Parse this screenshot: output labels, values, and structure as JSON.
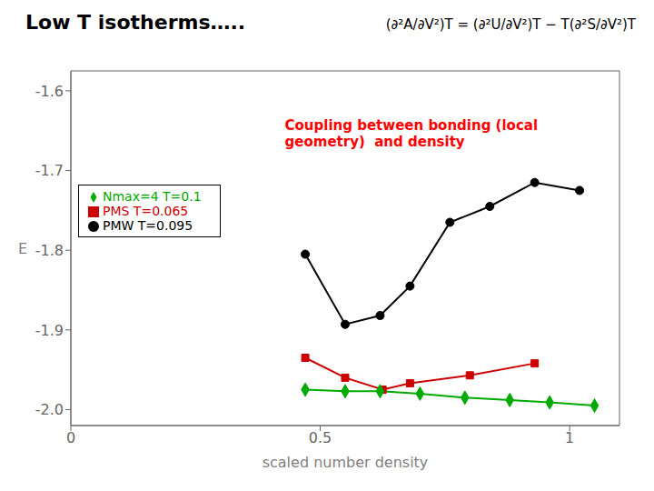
{
  "chart_data": {
    "type": "line",
    "title": "Low T isotherms…..",
    "subtitle": "(∂²A/∂V²)T = (∂²U/∂V²)T − T(∂²S/∂V²)T",
    "annotations": [
      {
        "text": "Coupling between bonding (local\ngeometry)  and density",
        "color": "#ff0000"
      }
    ],
    "xlabel": "scaled number density",
    "ylabel": "E",
    "xlim": [
      0,
      1.1
    ],
    "ylim": [
      -2.02,
      -1.575
    ],
    "xticks": [
      0,
      0.5,
      1
    ],
    "yticks": [
      {
        "value": -2.0,
        "label": "-2.0"
      },
      -1.9,
      -1.8,
      -1.7,
      -1.6
    ],
    "legend": "upper left",
    "series": [
      {
        "name": "PMW T=0.095",
        "color": "#000000",
        "marker": "circle",
        "x": [
          0.47,
          0.55,
          0.62,
          0.68,
          0.76,
          0.84,
          0.93,
          1.02
        ],
        "values": [
          -1.805,
          -1.893,
          -1.882,
          -1.845,
          -1.765,
          -1.745,
          -1.715,
          -1.725
        ]
      },
      {
        "name": "PMS  T=0.065",
        "color": "#cc0000",
        "marker": "square",
        "x": [
          0.47,
          0.55,
          0.625,
          0.68,
          0.8,
          0.93
        ],
        "values": [
          -1.935,
          -1.96,
          -1.975,
          -1.967,
          -1.957,
          -1.942
        ]
      },
      {
        "name": "Nmax=4  T=0.1",
        "color": "#00aa00",
        "marker": "diamond",
        "x": [
          0.47,
          0.55,
          0.62,
          0.7,
          0.79,
          0.88,
          0.96,
          1.05
        ],
        "values": [
          -1.975,
          -1.977,
          -1.977,
          -1.98,
          -1.985,
          -1.988,
          -1.991,
          -1.995
        ]
      }
    ]
  }
}
